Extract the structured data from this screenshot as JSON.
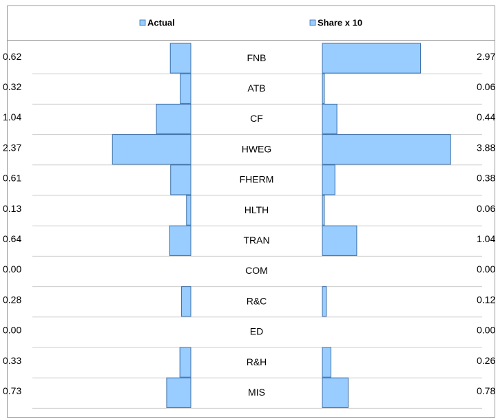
{
  "chart_data": {
    "type": "butterfly",
    "categories": [
      "FNB",
      "ATB",
      "CF",
      "HWEG",
      "FHERM",
      "HLTH",
      "TRAN",
      "COM",
      "R&C",
      "ED",
      "R&H",
      "MIS"
    ],
    "series": [
      {
        "name": "Actual",
        "color": "#99ccff",
        "values": [
          0.62,
          0.32,
          1.04,
          2.37,
          0.61,
          0.13,
          0.64,
          0,
          0.28,
          0,
          0.33,
          0.73
        ],
        "value_labels": [
          "0.62",
          "0.32",
          "1.04",
          "2.37",
          "0.61",
          "0.13",
          "0.64",
          "0.00",
          "0.28",
          "0.00",
          "0.33",
          "0.73"
        ]
      },
      {
        "name": "Share x 10",
        "color": "#99ccff",
        "values": [
          2.97,
          0.06,
          0.44,
          3.88,
          0.38,
          0.06,
          1.04,
          0,
          0.12,
          0,
          0.26,
          0.78
        ],
        "value_labels": [
          "2.97",
          "0.06",
          "0.44",
          "3.88",
          "0.38",
          "0.06",
          "1.04",
          "0.00",
          "0.12",
          "0.00",
          "0.26",
          "0.78"
        ]
      }
    ]
  }
}
